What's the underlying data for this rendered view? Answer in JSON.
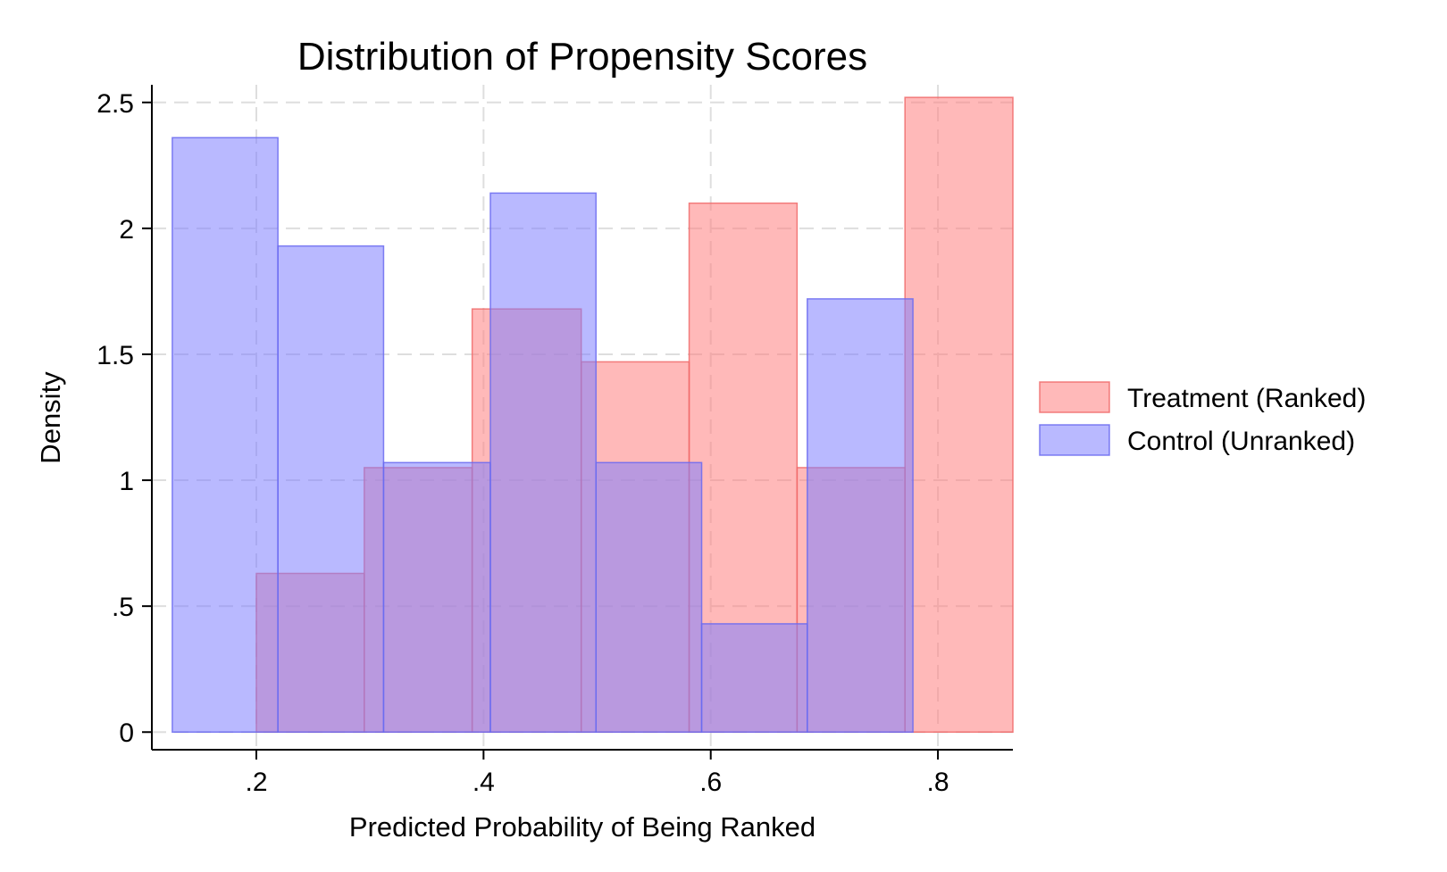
{
  "chart_data": {
    "type": "bar",
    "title": "Distribution of Propensity Scores",
    "xlabel": "Predicted Probability of Being Ranked",
    "ylabel": "Density",
    "xlim": [
      0.108,
      0.866
    ],
    "ylim": [
      -0.07,
      2.57
    ],
    "x_ticks": [
      {
        "value": 0.2,
        "label": ".2"
      },
      {
        "value": 0.4,
        "label": ".4"
      },
      {
        "value": 0.6,
        "label": ".6"
      },
      {
        "value": 0.8,
        "label": ".8"
      }
    ],
    "y_ticks": [
      {
        "value": 0,
        "label": "0"
      },
      {
        "value": 0.5,
        "label": ".5"
      },
      {
        "value": 1,
        "label": "1"
      },
      {
        "value": 1.5,
        "label": "1.5"
      },
      {
        "value": 2,
        "label": "2"
      },
      {
        "value": 2.5,
        "label": "2.5"
      }
    ],
    "grid": true,
    "legend_position": "right",
    "series": [
      {
        "name": "Treatment (Ranked)",
        "color": "#ff7f7f",
        "bins": [
          {
            "x0": 0.2,
            "x1": 0.295,
            "value": 0.63
          },
          {
            "x0": 0.295,
            "x1": 0.39,
            "value": 1.05
          },
          {
            "x0": 0.39,
            "x1": 0.486,
            "value": 1.68
          },
          {
            "x0": 0.486,
            "x1": 0.581,
            "value": 1.47
          },
          {
            "x0": 0.581,
            "x1": 0.676,
            "value": 2.1
          },
          {
            "x0": 0.676,
            "x1": 0.771,
            "value": 1.05
          },
          {
            "x0": 0.771,
            "x1": 0.866,
            "value": 2.52
          }
        ]
      },
      {
        "name": "Control (Unranked)",
        "color": "#7f7fff",
        "bins": [
          {
            "x0": 0.126,
            "x1": 0.219,
            "value": 2.36
          },
          {
            "x0": 0.219,
            "x1": 0.312,
            "value": 1.93
          },
          {
            "x0": 0.312,
            "x1": 0.406,
            "value": 1.07
          },
          {
            "x0": 0.406,
            "x1": 0.499,
            "value": 2.14
          },
          {
            "x0": 0.499,
            "x1": 0.592,
            "value": 1.07
          },
          {
            "x0": 0.592,
            "x1": 0.685,
            "value": 0.43
          },
          {
            "x0": 0.685,
            "x1": 0.778,
            "value": 1.72
          }
        ]
      }
    ]
  }
}
